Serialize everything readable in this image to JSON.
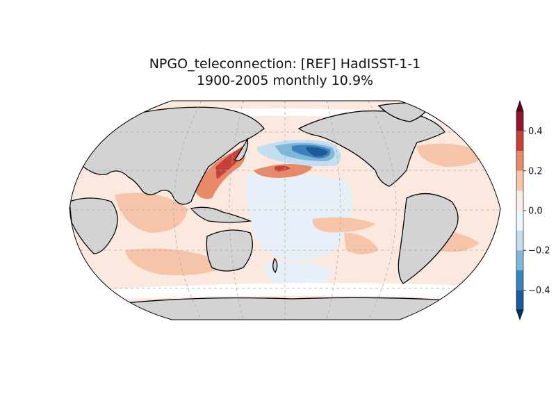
{
  "title": {
    "line1": "NPGO_teleconnection: [REF] HadISST-1-1",
    "line2": "1900-2005 monthly 10.9%"
  },
  "map": {
    "projection": "Robinson",
    "central_longitude": 180,
    "gridlines": true,
    "land_color": "#d3d3d3",
    "coastline_color": "#000000"
  },
  "colorbar": {
    "colormap": "RdBu_r",
    "vmin": -0.5,
    "vmax": 0.5,
    "levels": [
      -0.5,
      -0.4,
      -0.3,
      -0.2,
      -0.1,
      0.0,
      0.1,
      0.2,
      0.3,
      0.4,
      0.5
    ],
    "colors": [
      "#1d5a99",
      "#3a82b9",
      "#7fb8d9",
      "#c2def0",
      "#eef5fb",
      "#fbece4",
      "#f6c4a8",
      "#e8896a",
      "#c7413b",
      "#8e1628"
    ],
    "extend": "both",
    "tick_labels": [
      "0.4",
      "0.2",
      "0.0",
      "−0.2",
      "−0.4"
    ]
  }
}
